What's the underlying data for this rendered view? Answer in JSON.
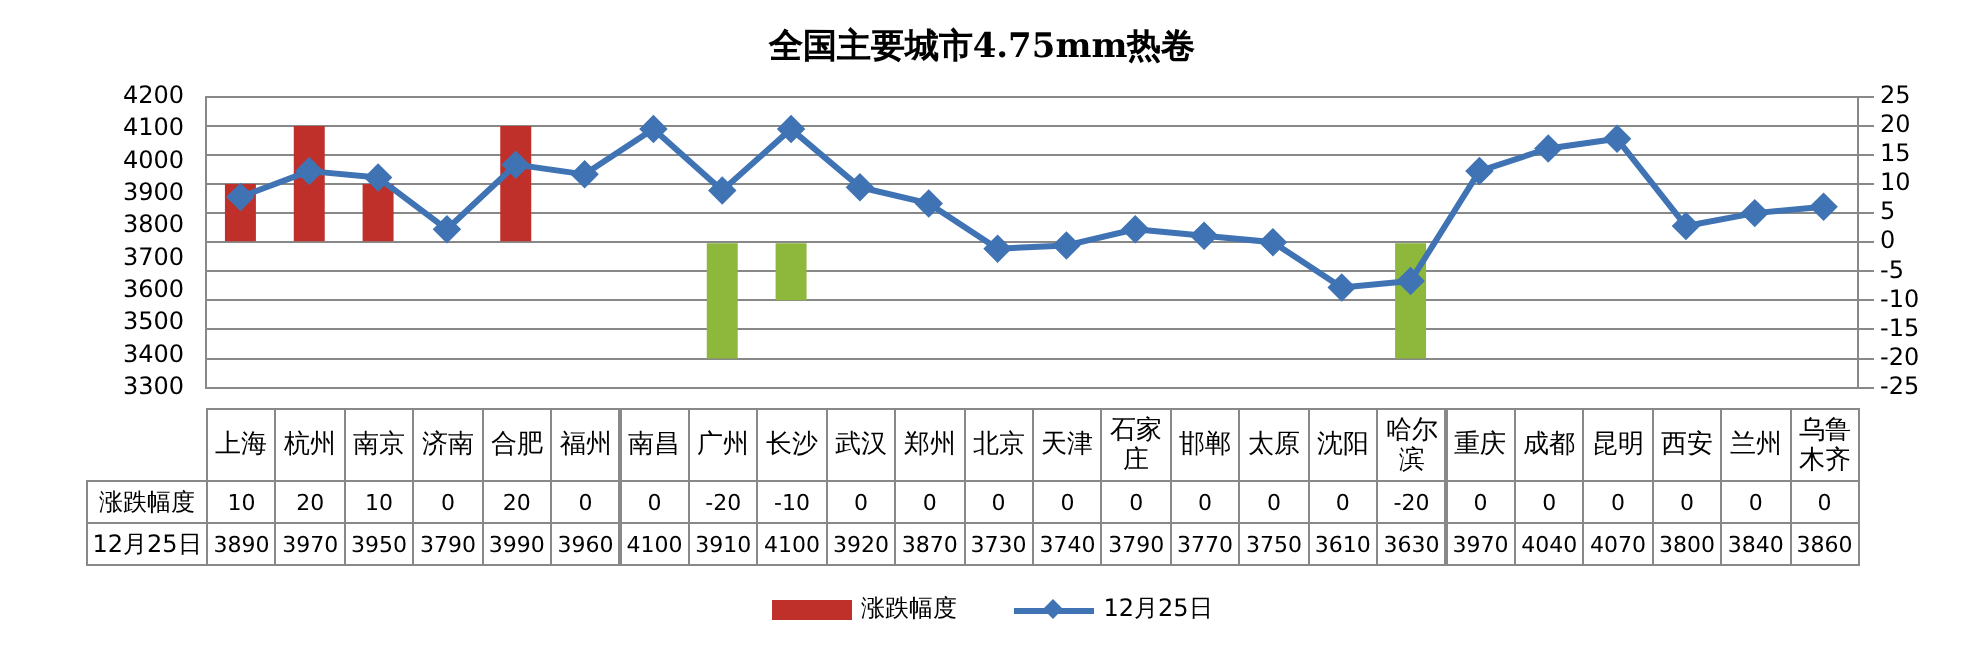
{
  "chart_data": {
    "type": "bar",
    "title": "全国主要城市4.75mm热卷",
    "categories": [
      "上海",
      "杭州",
      "南京",
      "济南",
      "合肥",
      "福州",
      "南昌",
      "广州",
      "长沙",
      "武汉",
      "郑州",
      "北京",
      "天津",
      "石家庄",
      "邯郸",
      "太原",
      "沈阳",
      "哈尔滨",
      "重庆",
      "成都",
      "昆明",
      "西安",
      "兰州",
      "乌鲁木齐"
    ],
    "series": [
      {
        "name": "涨跌幅度",
        "type": "bar",
        "axis": "y2",
        "color": "#c0302a",
        "colors": [
          "#c0302a",
          "#c0302a",
          "#c0302a",
          "#c0302a",
          "#c0302a",
          "#c0302a",
          "#c0302a",
          "#8db83b",
          "#8db83b",
          "#c0302a",
          "#c0302a",
          "#c0302a",
          "#c0302a",
          "#c0302a",
          "#c0302a",
          "#c0302a",
          "#c0302a",
          "#8db83b",
          "#c0302a",
          "#c0302a",
          "#c0302a",
          "#c0302a",
          "#c0302a",
          "#c0302a"
        ],
        "values": [
          10,
          20,
          10,
          0,
          20,
          0,
          0,
          -20,
          -10,
          0,
          0,
          0,
          0,
          0,
          0,
          0,
          0,
          -20,
          0,
          0,
          0,
          0,
          0,
          0
        ]
      },
      {
        "name": "12月25日",
        "type": "line",
        "color": "#3f73b4",
        "values": [
          3890,
          3970,
          3950,
          3790,
          3990,
          3960,
          4100,
          3910,
          4100,
          3920,
          3870,
          3730,
          3740,
          3790,
          3770,
          3750,
          3610,
          3630,
          3970,
          4040,
          4070,
          3800,
          3840,
          3860
        ]
      }
    ],
    "ylim": [
      3300,
      4200
    ],
    "yticks": [
      3300,
      3400,
      3500,
      3600,
      3700,
      3800,
      3900,
      4000,
      4100,
      4200
    ],
    "y2lim": [
      -25,
      25
    ],
    "y2ticks": [
      -25,
      -20,
      -15,
      -10,
      -5,
      0,
      5,
      10,
      15,
      20,
      25
    ],
    "grid": "y2",
    "legend": "bottom",
    "marker": "diamond",
    "data_labels": true
  }
}
